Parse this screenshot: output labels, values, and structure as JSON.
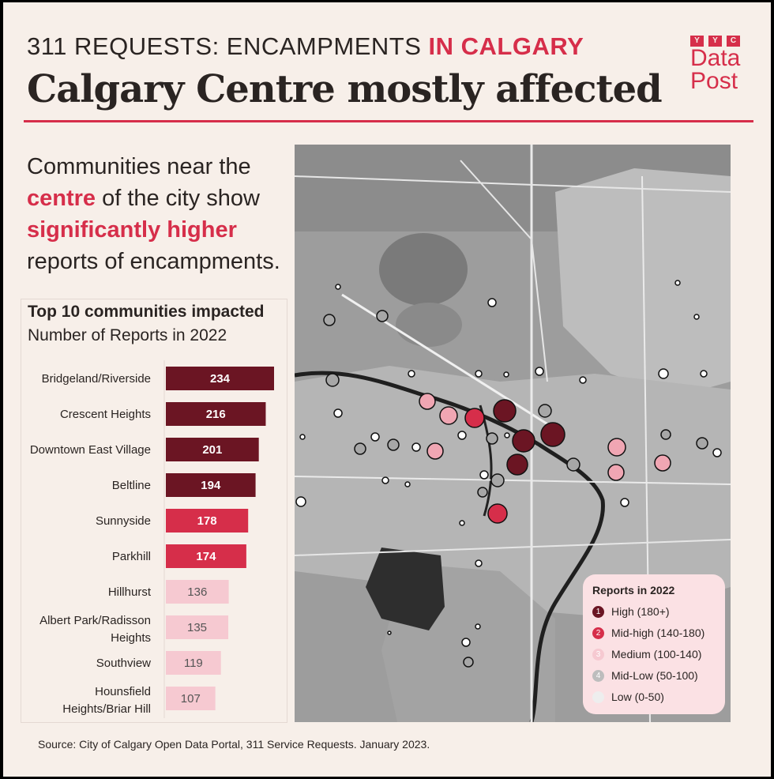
{
  "header": {
    "kicker_prefix": "311 REQUESTS: ENCAMPMENTS ",
    "kicker_highlight": "IN CALGARY",
    "headline": "Calgary Centre mostly affected"
  },
  "logo": {
    "letters": [
      "Y",
      "Y",
      "C"
    ],
    "line1": "Data",
    "line2": "Post"
  },
  "intro": {
    "part1": "Communities near the ",
    "highlight1": "centre",
    "part2": " of the city show ",
    "highlight2": "significantly higher",
    "part3": " reports of encampments."
  },
  "chart_data": {
    "type": "bar",
    "orientation": "horizontal",
    "title": "Top 10 communities impacted",
    "subtitle": "Number of Reports in 2022",
    "categories": [
      "Bridgeland/Riverside",
      "Crescent Heights",
      "Downtown East Village",
      "Beltline",
      "Sunnyside",
      "Parkhill",
      "Hillhurst",
      "Albert Park/Radisson Heights",
      "Southview",
      "Hounsfield Heights/Briar Hill"
    ],
    "values": [
      234,
      216,
      201,
      194,
      178,
      174,
      136,
      135,
      119,
      107
    ],
    "tiers": [
      "high",
      "high",
      "high",
      "high",
      "midhigh",
      "midhigh",
      "medium",
      "medium",
      "medium",
      "medium"
    ],
    "xlim": [
      0,
      240
    ]
  },
  "colors": {
    "high": "#6b1523",
    "midhigh": "#d62e4a",
    "medium": "#f6c9d1",
    "midlow": "#a7a7a7",
    "low": "#eeeeee",
    "accent": "#d62e4a",
    "background": "#f7efe9"
  },
  "legend": {
    "title": "Reports in 2022",
    "items": [
      {
        "num": "1",
        "label": "High (180+)"
      },
      {
        "num": "2",
        "label": "Mid-high (140-180)"
      },
      {
        "num": "3",
        "label": "Medium (100-140)"
      },
      {
        "num": "4",
        "label": "Mid-Low (50-100)"
      },
      {
        "num": "",
        "label": "Low (0-50)"
      }
    ]
  },
  "source": "Source: City of Calgary Open Data Portal, 311 Service Requests. January 2023."
}
